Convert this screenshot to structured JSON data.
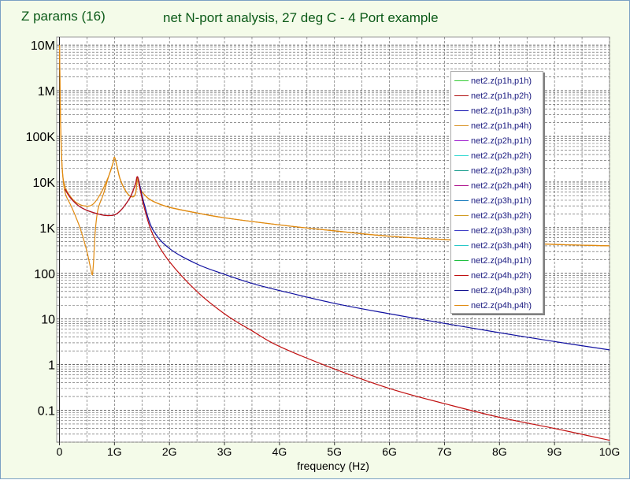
{
  "window": {
    "title": "Z params (16)"
  },
  "chart_data": {
    "type": "line",
    "title": "net N-port analysis, 27 deg C - 4 Port example",
    "xlabel": "frequency (Hz)",
    "ylabel": "",
    "yscale": "log",
    "xlim": [
      -0.05,
      10
    ],
    "ylim": [
      0.02,
      15000000
    ],
    "grid": true,
    "legend_position": "right",
    "x_ticks": [
      {
        "value": 0,
        "label": "0"
      },
      {
        "value": 1,
        "label": "1G"
      },
      {
        "value": 2,
        "label": "2G"
      },
      {
        "value": 3,
        "label": "3G"
      },
      {
        "value": 4,
        "label": "4G"
      },
      {
        "value": 5,
        "label": "5G"
      },
      {
        "value": 6,
        "label": "6G"
      },
      {
        "value": 7,
        "label": "7G"
      },
      {
        "value": 8,
        "label": "8G"
      },
      {
        "value": 9,
        "label": "9G"
      },
      {
        "value": 10,
        "label": "10G"
      }
    ],
    "x_unit": "GHz",
    "y_ticks": [
      {
        "value": 0.1,
        "label": "0.1"
      },
      {
        "value": 1,
        "label": "1"
      },
      {
        "value": 10,
        "label": "10"
      },
      {
        "value": 100,
        "label": "100"
      },
      {
        "value": 1000,
        "label": "1K"
      },
      {
        "value": 10000,
        "label": "10K"
      },
      {
        "value": 100000,
        "label": "100K"
      },
      {
        "value": 1000000,
        "label": "1M"
      },
      {
        "value": 10000000,
        "label": "10M"
      }
    ],
    "series": [
      {
        "name": "net2.z(p1h,p1h)",
        "color": "#33cc33",
        "values": []
      },
      {
        "name": "net2.z(p1h,p2h)",
        "color": "#b01010",
        "values": []
      },
      {
        "name": "net2.z(p1h,p3h)",
        "color": "#1010b0",
        "values": []
      },
      {
        "name": "net2.z(p1h,p4h)",
        "color": "#d89020",
        "values": []
      },
      {
        "name": "net2.z(p2h,p1h)",
        "color": "#a020d0",
        "values": []
      },
      {
        "name": "net2.z(p2h,p2h)",
        "color": "#30d8d0",
        "values": []
      },
      {
        "name": "net2.z(p2h,p3h)",
        "color": "#20a090",
        "values": []
      },
      {
        "name": "net2.z(p2h,p4h)",
        "color": "#b01890",
        "values": []
      },
      {
        "name": "net2.z(p3h,p1h)",
        "color": "#2080c0",
        "values": []
      },
      {
        "name": "net2.z(p3h,p2h)",
        "color": "#d09a20",
        "values": []
      },
      {
        "name": "net2.z(p3h,p3h)",
        "color": "#4040c8",
        "values": []
      },
      {
        "name": "net2.z(p3h,p4h)",
        "color": "#28c8c8",
        "values": []
      },
      {
        "name": "net2.z(p4h,p1h)",
        "color": "#20c040",
        "values": []
      },
      {
        "name": "net2.z(p4h,p2h)",
        "color": "#c01010",
        "values": []
      },
      {
        "name": "net2.z(p4h,p3h)",
        "color": "#101090",
        "values": []
      },
      {
        "name": "net2.z(p4h,p4h)",
        "color": "#e08a10",
        "values": []
      }
    ],
    "curves": [
      {
        "description": "self-impedance traces (orange)",
        "color": "#e08a10",
        "x": [
          0.002,
          0.02,
          0.05,
          0.1,
          0.2,
          0.3,
          0.45,
          0.6,
          0.75,
          0.9,
          0.97,
          1.0,
          1.04,
          1.1,
          1.2,
          1.3,
          1.38,
          1.42,
          1.46,
          1.55,
          1.7,
          2.0,
          2.5,
          3.0,
          4.0,
          5.0,
          6.0,
          7.0,
          8.0,
          9.0,
          10.0
        ],
        "y": [
          10000000,
          200000,
          20000,
          8000,
          4800,
          3600,
          3000,
          3200,
          5600,
          14000,
          25000,
          35000,
          24000,
          12000,
          6500,
          4800,
          5500,
          12000,
          7500,
          5200,
          3800,
          2800,
          2100,
          1650,
          1150,
          850,
          650,
          550,
          480,
          430,
          400
        ]
      },
      {
        "description": "transfer impedance traces (orange, with notch)",
        "color": "#e08a10",
        "x": [
          0.002,
          0.02,
          0.05,
          0.1,
          0.2,
          0.3,
          0.4,
          0.5,
          0.55,
          0.58,
          0.6,
          0.62,
          0.65,
          0.7,
          0.8,
          0.9,
          0.97,
          1.0,
          1.04,
          1.1,
          1.2,
          1.3,
          1.38,
          1.42,
          1.46,
          1.55,
          1.7,
          2.0,
          2.5,
          3.0,
          4.0,
          5.0,
          6.0,
          7.0,
          8.0,
          9.0,
          10.0
        ],
        "y": [
          10000000,
          200000,
          20000,
          6000,
          3200,
          1700,
          800,
          300,
          160,
          110,
          95,
          180,
          800,
          2500,
          5500,
          14000,
          25000,
          35000,
          24000,
          12000,
          6500,
          4800,
          5500,
          12000,
          7500,
          5200,
          3800,
          2800,
          2100,
          1650,
          1150,
          850,
          650,
          550,
          480,
          430,
          400
        ]
      },
      {
        "description": "blue traces",
        "color": "#1010a0",
        "x": [
          0.1,
          0.2,
          0.35,
          0.5,
          0.7,
          0.85,
          1.0,
          1.1,
          1.2,
          1.3,
          1.38,
          1.42,
          1.47,
          1.55,
          1.7,
          2.0,
          2.5,
          3.0,
          3.5,
          4.0,
          5.0,
          6.0,
          7.0,
          8.0,
          9.0,
          10.0
        ],
        "y": [
          7000,
          4500,
          3000,
          2400,
          2000,
          1850,
          1900,
          2300,
          3200,
          5000,
          9000,
          13000,
          7500,
          3000,
          900,
          350,
          160,
          95,
          60,
          42,
          22,
          13,
          8,
          5,
          3.2,
          2.1
        ]
      },
      {
        "description": "red traces",
        "color": "#c01010",
        "x": [
          0.1,
          0.2,
          0.35,
          0.5,
          0.7,
          0.85,
          1.0,
          1.1,
          1.2,
          1.3,
          1.38,
          1.42,
          1.47,
          1.55,
          1.7,
          2.0,
          2.5,
          3.0,
          3.5,
          4.0,
          5.0,
          6.0,
          7.0,
          8.0,
          9.0,
          10.0
        ],
        "y": [
          7000,
          4500,
          3000,
          2400,
          2000,
          1850,
          1900,
          2300,
          3200,
          5000,
          9000,
          13000,
          6500,
          2500,
          700,
          180,
          40,
          13,
          5.5,
          2.5,
          0.8,
          0.3,
          0.14,
          0.07,
          0.04,
          0.022
        ]
      }
    ]
  }
}
